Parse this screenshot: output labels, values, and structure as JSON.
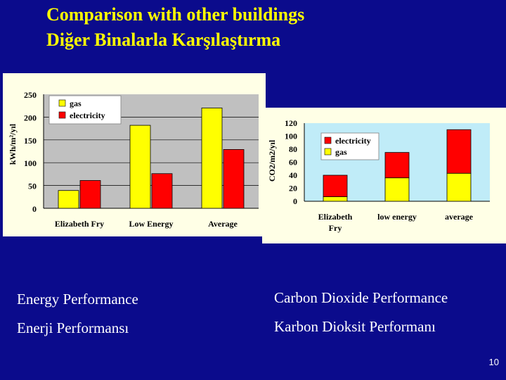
{
  "slide": {
    "title_en": "Comparison with other buildings",
    "title_tr": "Diğer Binalarla Karşılaştırma",
    "captions": {
      "energy_en": "Energy Performance",
      "energy_tr": "Enerji Performansı",
      "carbon_en": "Carbon Dioxide Performance",
      "carbon_tr": "Karbon Dioksit Performanı"
    },
    "page_number": "10"
  },
  "colors": {
    "background": "#0b0b8c",
    "title": "#ffff00",
    "gas": "#ffff00",
    "electricity": "#ff0000",
    "plot_bg_energy": "#c0c0c0",
    "plot_bg_co2": "#c0ecf8",
    "panel_bg": "#ffffe6"
  },
  "chart_data": [
    {
      "type": "bar",
      "mode": "grouped",
      "title": "",
      "xlabel": "",
      "ylabel": "kWh/m²/yıl",
      "categories": [
        "Elizabeth Fry",
        "Low Energy",
        "Average"
      ],
      "series": [
        {
          "name": "gas",
          "values": [
            39,
            182,
            220
          ]
        },
        {
          "name": "electricity",
          "values": [
            61,
            76,
            129
          ]
        }
      ],
      "ylim": [
        0,
        250
      ],
      "yticks": [
        "0",
        "50",
        "100",
        "150",
        "200",
        "250"
      ],
      "grid": true,
      "legend": "top-left"
    },
    {
      "type": "bar",
      "mode": "stacked",
      "title": "",
      "xlabel": "",
      "ylabel": "CO2/m2/yıl",
      "categories": [
        "Elizabeth Fry",
        "low energy",
        "average"
      ],
      "series": [
        {
          "name": "gas",
          "values": [
            7,
            36,
            43
          ]
        },
        {
          "name": "electricity",
          "values": [
            33,
            39,
            67
          ]
        }
      ],
      "ylim": [
        0,
        120
      ],
      "yticks": [
        "0",
        "20",
        "40",
        "60",
        "80",
        "100",
        "120"
      ],
      "grid": false,
      "legend": "top-left"
    }
  ]
}
